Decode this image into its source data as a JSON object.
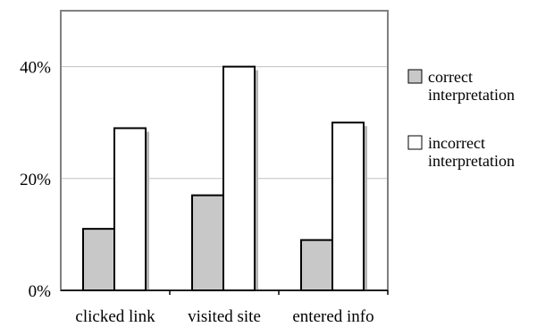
{
  "chart_data": {
    "type": "bar",
    "categories": [
      "clicked link",
      "visited site",
      "entered info"
    ],
    "series": [
      {
        "name": "correct interpretation",
        "values": [
          11,
          17,
          9
        ],
        "color": "#c8c8c8"
      },
      {
        "name": "incorrect interpretation",
        "values": [
          29,
          40,
          30
        ],
        "color": "#ffffff"
      }
    ],
    "y_ticks": [
      {
        "value": 0,
        "label": "0%"
      },
      {
        "value": 20,
        "label": "20%"
      },
      {
        "value": 40,
        "label": "40%"
      }
    ],
    "ylim": [
      0,
      50
    ],
    "grid": true,
    "legend_position": "right",
    "legend": [
      {
        "lines": [
          "correct",
          "interpretation"
        ],
        "color": "#c8c8c8"
      },
      {
        "lines": [
          "incorrect",
          "interpretation"
        ],
        "color": "#ffffff"
      }
    ],
    "colors": {
      "frame": "#808080",
      "grid": "#c0c0c0",
      "shadow": "#b4b4b4",
      "bar_stroke": "#000000"
    }
  }
}
